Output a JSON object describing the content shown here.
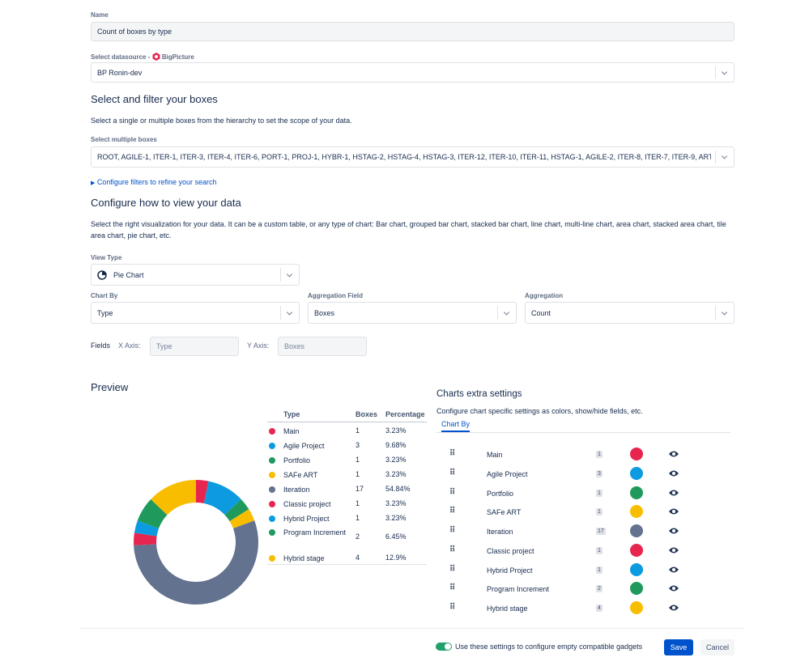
{
  "form": {
    "name_label": "Name",
    "name_value": "Count of boxes by type",
    "datasource_label": "Select datasource -",
    "datasource_brand": "BigPicture",
    "datasource_value": "BP Ronin-dev"
  },
  "select_section": {
    "heading": "Select and filter your boxes",
    "description": "Select a single or multiple boxes from the hierarchy to set the scope of your data.",
    "boxes_label": "Select multiple boxes",
    "boxes_value": "ROOT, AGILE-1, ITER-1, ITER-3, ITER-4, ITER-6, PORT-1, PROJ-1, HYBR-1, HSTAG-2, HSTAG-4, HSTAG-3, ITER-12, ITER-10, ITER-11, HSTAG-1, AGILE-2, ITER-8, ITER-7, ITER-9, ART…",
    "filters_link": "Configure filters to refine your search"
  },
  "view_section": {
    "heading": "Configure how to view your data",
    "description": "Select the right visualization for your data. It can be a custom table, or any type of chart: Bar chart, grouped bar chart, stacked bar chart, line chart, multi-line chart, area chart, stacked area chart, tile area chart, pie chart, etc.",
    "view_type_label": "View Type",
    "view_type_value": "Pie Chart",
    "chart_by_label": "Chart By",
    "chart_by_value": "Type",
    "aggregation_field_label": "Aggregation Field",
    "aggregation_field_value": "Boxes",
    "aggregation_label": "Aggregation",
    "aggregation_value": "Count",
    "fields_label": "Fields",
    "x_axis_label": "X Axis:",
    "x_axis_value": "Type",
    "y_axis_label": "Y Axis:",
    "y_axis_value": "Boxes"
  },
  "preview": {
    "heading": "Preview"
  },
  "chart_data": {
    "type": "pie",
    "donut": true,
    "categories": [
      "Main",
      "Agile Project",
      "Portfolio",
      "SAFe ART",
      "Iteration",
      "Classic project",
      "Hybrid Project",
      "Program Increment",
      "Hybrid stage"
    ],
    "values": [
      1,
      3,
      1,
      1,
      17,
      1,
      1,
      2,
      4
    ],
    "colors": [
      "#e8254f",
      "#0c9be0",
      "#1f9a5c",
      "#f9bd00",
      "#63728f",
      "#e8254f",
      "#0c9be0",
      "#1f9a5c",
      "#f9bd00"
    ]
  },
  "table": {
    "columns": [
      "Type",
      "Boxes",
      "Percentage"
    ],
    "percentages": [
      "3.23%",
      "9.68%",
      "3.23%",
      "3.23%",
      "54.84%",
      "3.23%",
      "3.23%",
      "6.45%",
      "12.9%"
    ]
  },
  "settings": {
    "heading": "Charts extra settings",
    "description": "Configure chart specific settings as colors, show/hide fields, etc.",
    "tab": "Chart By"
  },
  "footer": {
    "toggle_label": "Use these settings to configure empty compatible gadgets",
    "save": "Save",
    "cancel": "Cancel"
  }
}
